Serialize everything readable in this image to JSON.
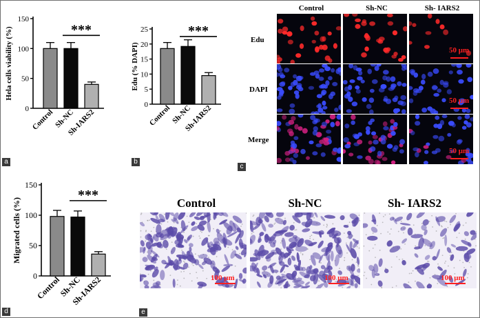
{
  "panel_labels": {
    "a": "a",
    "b": "b",
    "c": "c",
    "d": "d",
    "e": "e"
  },
  "chart_data": [
    {
      "id": "a",
      "type": "bar",
      "ylabel": "Hela cells viability (%)",
      "categories": [
        "Control",
        "Sh-NC",
        "Sh-IARS2"
      ],
      "values": [
        100,
        100,
        40
      ],
      "errors": [
        10,
        10,
        4
      ],
      "colors": [
        "#8a8a8a",
        "#0a0a0a",
        "#b0b0b0"
      ],
      "ylim": [
        0,
        150
      ],
      "yticks": [
        0,
        50,
        100,
        150
      ],
      "significance": {
        "label": "***",
        "from": 1,
        "to": 2,
        "y": 122
      }
    },
    {
      "id": "b",
      "type": "bar",
      "ylabel": "Edu (% DAPI)",
      "categories": [
        "Control",
        "Sh-NC",
        "Sh-IARS2"
      ],
      "values": [
        18.5,
        19.2,
        9.5
      ],
      "errors": [
        2,
        2.2,
        1
      ],
      "colors": [
        "#8a8a8a",
        "#0a0a0a",
        "#b0b0b0"
      ],
      "ylim": [
        0,
        25
      ],
      "yticks": [
        0,
        5,
        10,
        15,
        20,
        25
      ],
      "significance": {
        "label": "***",
        "from": 1,
        "to": 2,
        "y": 22.5
      }
    },
    {
      "id": "d",
      "type": "bar",
      "ylabel": "Migrated cells (%)",
      "categories": [
        "Control",
        "Sh-NC",
        "Sh-IARS2"
      ],
      "values": [
        98,
        97,
        36
      ],
      "errors": [
        10,
        10,
        4
      ],
      "colors": [
        "#8a8a8a",
        "#0a0a0a",
        "#b0b0b0"
      ],
      "ylim": [
        0,
        150
      ],
      "yticks": [
        0,
        50,
        100,
        150
      ],
      "significance": {
        "label": "***",
        "from": 1,
        "to": 2,
        "y": 124
      }
    }
  ],
  "panel_c": {
    "columns": [
      "Control",
      "Sh-NC",
      "Sh- IARS2"
    ],
    "rows": [
      "Edu",
      "DAPI",
      "Merge"
    ],
    "scale_bar": "50 μm"
  },
  "panel_e": {
    "columns": [
      "Control",
      "Sh-NC",
      "Sh- IARS2"
    ],
    "scale_bar": "100 μm"
  },
  "colors": {
    "edu": "#ff2a2a",
    "dapi": "#3a4cff",
    "merge": "#d02080",
    "stain": "#5a4aa8",
    "scale": "#ff2020"
  }
}
